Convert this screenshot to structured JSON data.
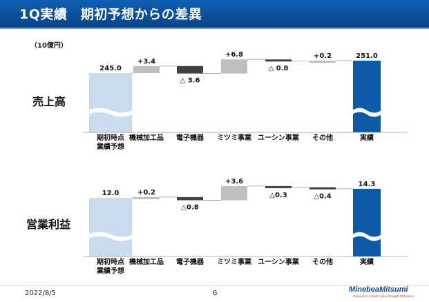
{
  "title": "1Q実績　期初予想からの差異",
  "unit": "（10億円）",
  "footer": {
    "date": "2022/8/5",
    "page": "6"
  },
  "logo": {
    "name": "MinebeaMitsumi",
    "tagline": "Passion to Create Value through Difference"
  },
  "colors": {
    "title_bg": "#0a4f9c",
    "start_bar": "#c9dcf0",
    "increase_bar": "#bfbfbf",
    "decrease_bar": "#404040",
    "result_bar": "#0a5aa8"
  },
  "chart_data": [
    {
      "type": "bar",
      "subtype": "waterfall",
      "title": "売上高",
      "categories": [
        "期初時点\n業績予想",
        "機械加工品",
        "電子機器",
        "ミツミ事業",
        "ユーシン事業",
        "その他",
        "実績"
      ],
      "values": [
        245.0,
        3.4,
        -3.6,
        6.8,
        -0.8,
        0.2,
        251.0
      ],
      "labels": [
        "245.0",
        "+3.4",
        "△ 3.6",
        "+6.8",
        "△ 0.8",
        "+0.2",
        "251.0"
      ],
      "kinds": [
        "start",
        "increase",
        "decrease",
        "increase",
        "decrease",
        "increase",
        "total"
      ],
      "axis_break": true
    },
    {
      "type": "bar",
      "subtype": "waterfall",
      "title": "営業利益",
      "categories": [
        "期初時点\n業績予想",
        "機械加工品",
        "電子機器",
        "ミツミ事業",
        "ユーシン事業",
        "その他",
        "実績"
      ],
      "values": [
        12.0,
        0.2,
        -0.8,
        3.6,
        -0.3,
        -0.4,
        14.3
      ],
      "labels": [
        "12.0",
        "+0.2",
        "△0.8",
        "+3.6",
        "△0.3",
        "△0.4",
        "14.3"
      ],
      "kinds": [
        "start",
        "increase",
        "decrease",
        "increase",
        "decrease",
        "decrease",
        "total"
      ],
      "axis_break": true
    }
  ]
}
